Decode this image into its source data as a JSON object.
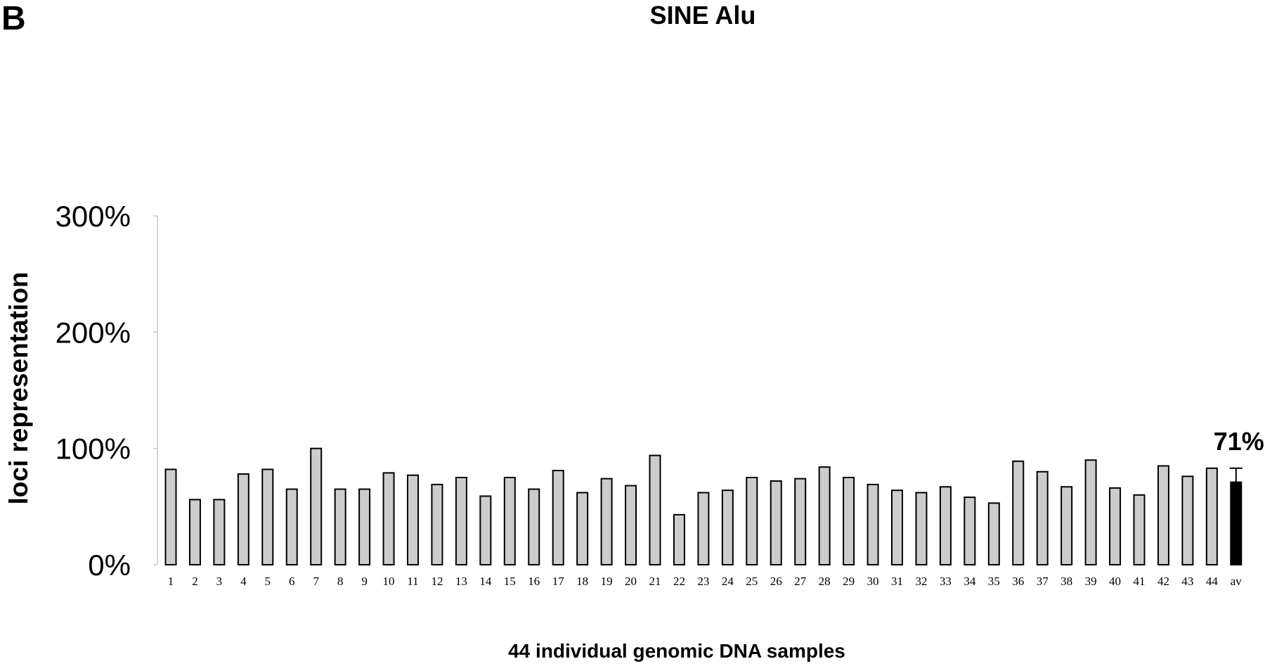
{
  "panel_label": "B",
  "chart_data": {
    "type": "bar",
    "title": "SINE Alu",
    "xlabel": "44 individual genomic DNA samples",
    "ylabel": "loci representation",
    "ylim": [
      0,
      300
    ],
    "yticks": [
      "0%",
      "100%",
      "200%",
      "300%"
    ],
    "grid": false,
    "categories": [
      "1",
      "2",
      "3",
      "4",
      "5",
      "6",
      "7",
      "8",
      "9",
      "10",
      "11",
      "12",
      "13",
      "14",
      "15",
      "16",
      "17",
      "18",
      "19",
      "20",
      "21",
      "22",
      "23",
      "24",
      "25",
      "26",
      "27",
      "28",
      "29",
      "30",
      "31",
      "32",
      "33",
      "34",
      "35",
      "36",
      "37",
      "38",
      "39",
      "40",
      "41",
      "42",
      "43",
      "44",
      "av"
    ],
    "values": [
      82,
      56,
      56,
      78,
      82,
      65,
      100,
      65,
      65,
      79,
      77,
      69,
      75,
      59,
      75,
      65,
      81,
      62,
      74,
      68,
      94,
      43,
      62,
      64,
      75,
      72,
      74,
      84,
      75,
      69,
      64,
      62,
      67,
      58,
      53,
      89,
      80,
      67,
      90,
      66,
      60,
      85,
      76,
      83,
      71
    ],
    "bar_color": "#cccccc",
    "highlight_color": "#000000",
    "highlight_category": "av",
    "error_bar": {
      "category": "av",
      "upper": 83
    },
    "annotations": [
      {
        "category": "av",
        "text": "71%"
      }
    ]
  }
}
